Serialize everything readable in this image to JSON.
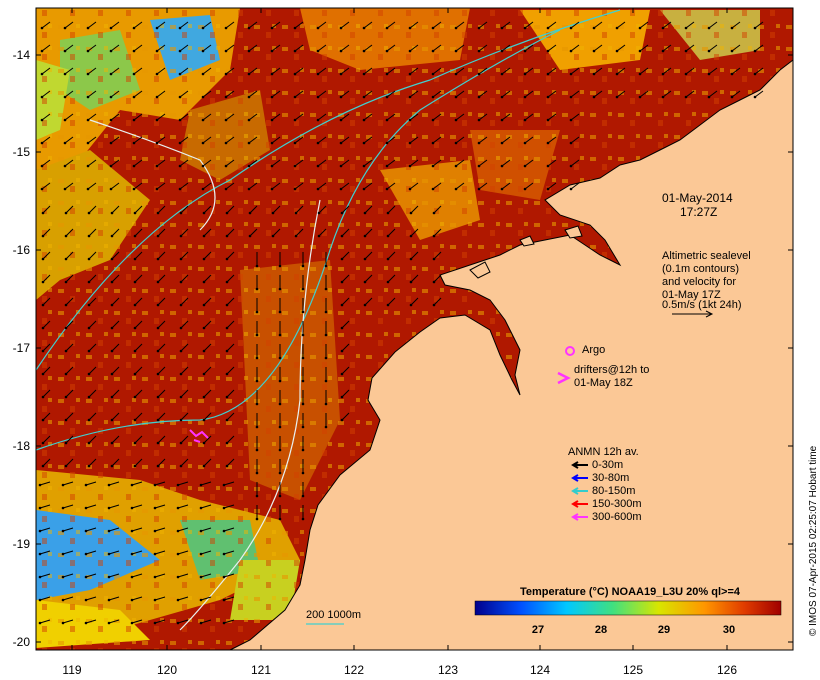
{
  "map": {
    "y_ticks": [
      "-14",
      "-15",
      "-16",
      "-17",
      "-18",
      "-19",
      "-20"
    ],
    "x_ticks": [
      "119",
      "120",
      "121",
      "122",
      "123",
      "124",
      "125",
      "126"
    ],
    "date_line1": "01-May-2014",
    "date_line2": "17:27Z",
    "alt_lines": [
      "Altimetric sealevel",
      "(0.1m contours)",
      "and velocity for",
      "01-May 17Z",
      "0.5m/s (1kt 24h)"
    ],
    "argo_label": "Argo",
    "drifters_line1": "drifters@12h to",
    "drifters_line2": "01-May 18Z",
    "anmn_title": "ANMN 12h av.",
    "depth_legend": [
      {
        "label": "0-30m",
        "color": "#000000"
      },
      {
        "label": "30-80m",
        "color": "#0000ff"
      },
      {
        "label": "80-150m",
        "color": "#33cccc"
      },
      {
        "label": "150-300m",
        "color": "#ff0000"
      },
      {
        "label": "300-600m",
        "color": "#ff33ff"
      }
    ],
    "isobath_label": "200  1000m",
    "colorbar_title": "Temperature (°C) NOAA19_L3U 20% ql>=4",
    "colorbar_ticks": [
      "27",
      "28",
      "29",
      "30"
    ],
    "credit": "© IMOS 07-Apr-2015 02:25:07 Hobart time",
    "colors": {
      "land": "#fbc896",
      "warm_water": "#b41400",
      "argo": "#ff33ff",
      "contour": "#40d0d0"
    }
  }
}
